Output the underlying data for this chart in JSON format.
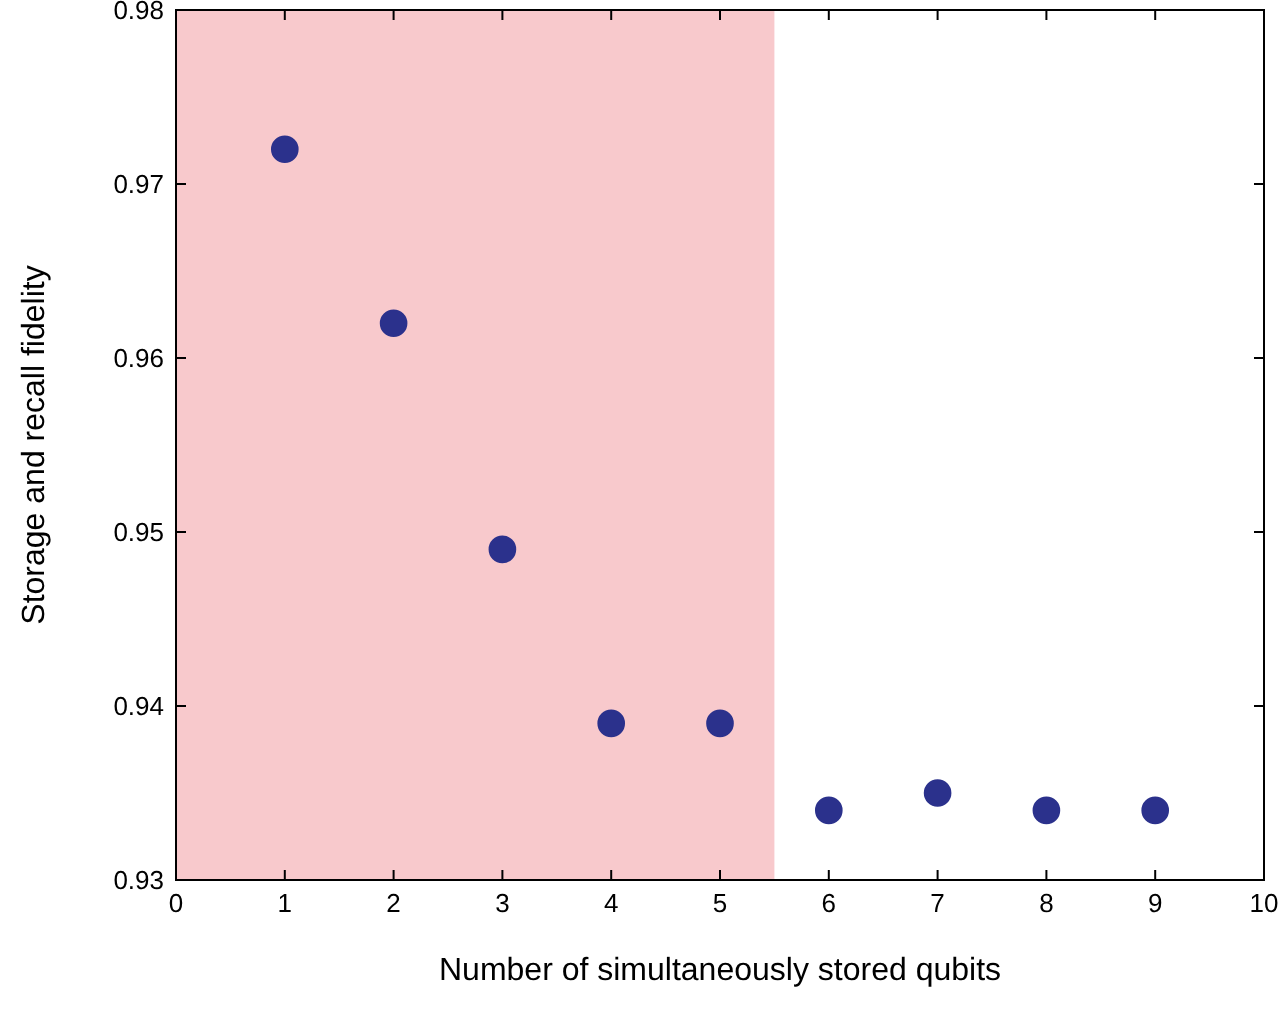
{
  "chart_data": {
    "type": "scatter",
    "xlabel": "Number of simultaneously stored qubits",
    "ylabel": "Storage and recall fidelity",
    "x": [
      1,
      2,
      3,
      4,
      5,
      6,
      7,
      8,
      9
    ],
    "series": [
      {
        "color": "#2b318c",
        "values": [
          0.972,
          0.962,
          0.949,
          0.939,
          0.939,
          0.934,
          0.935,
          0.934,
          0.934
        ]
      }
    ],
    "xlim": [
      0,
      10
    ],
    "xticks": [
      0,
      1,
      2,
      3,
      4,
      5,
      6,
      7,
      8,
      9,
      10
    ],
    "ylim": [
      0.93,
      0.98
    ],
    "yticks": [
      {
        "value": 0.93,
        "label": "0.93"
      },
      {
        "value": 0.94,
        "label": "0.94"
      },
      {
        "value": 0.95,
        "label": "0.95"
      },
      {
        "value": 0.96,
        "label": "0.96"
      },
      {
        "value": 0.97,
        "label": "0.97"
      },
      {
        "value": 0.98,
        "label": "0.98"
      }
    ],
    "bands": [
      {
        "axis": "x",
        "from": 0,
        "to": 5.5,
        "color": "#f8c9cc"
      }
    ],
    "marker": "circle",
    "grid": false
  }
}
